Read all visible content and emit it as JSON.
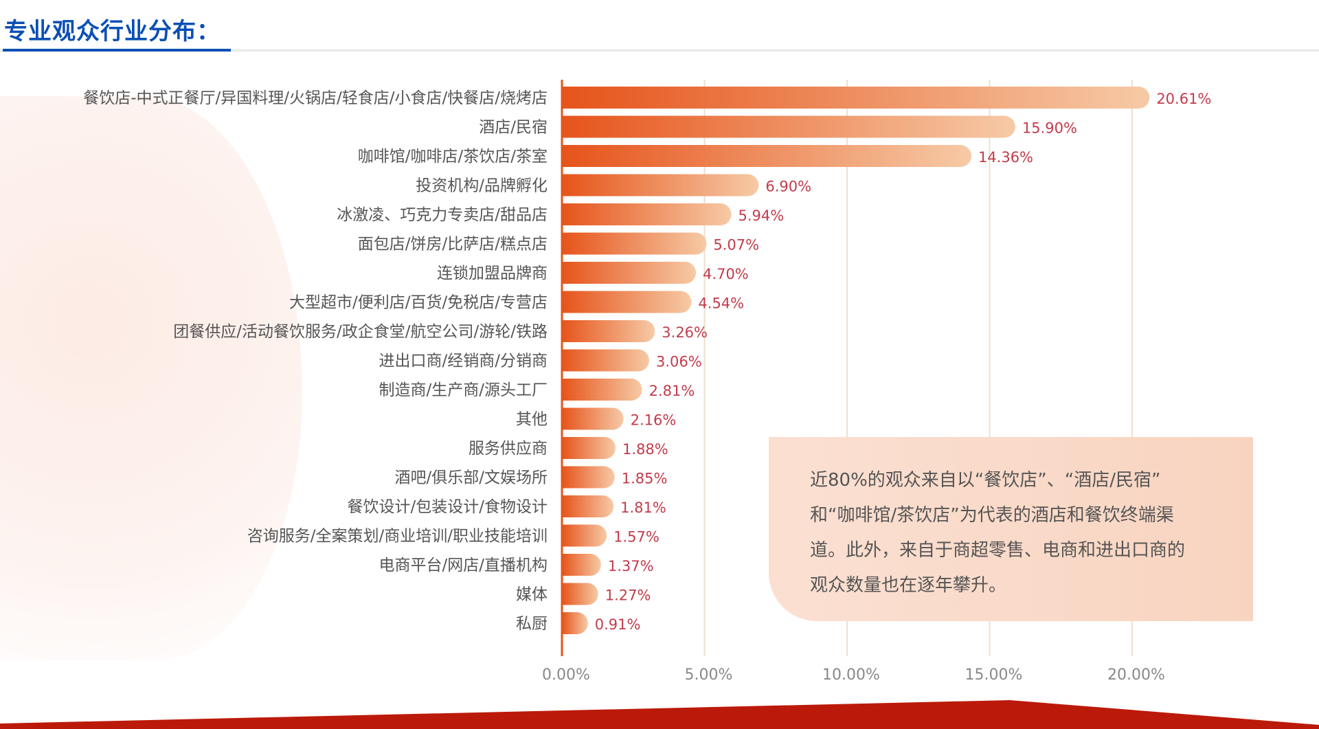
{
  "header": {
    "title": "专业观众行业分布："
  },
  "chart_data": {
    "type": "bar",
    "orientation": "horizontal",
    "title": "专业观众行业分布：",
    "categories": [
      "餐饮店-中式正餐厅/异国料理/火锅店/轻食店/小食店/快餐店/烧烤店",
      "酒店/民宿",
      "咖啡馆/咖啡店/茶饮店/茶室",
      "投资机构/品牌孵化",
      "冰激凌、巧克力专卖店/甜品店",
      "面包店/饼房/比萨店/糕点店",
      "连锁加盟品牌商",
      "大型超市/便利店/百货/免税店/专营店",
      "团餐供应/活动餐饮服务/政企食堂/航空公司/游轮/铁路",
      "进出口商/经销商/分销商",
      "制造商/生产商/源头工厂",
      "其他",
      "服务供应商",
      "酒吧/俱乐部/文娱场所",
      "餐饮设计/包装设计/食物设计",
      "咨询服务/全案策划/商业培训/职业技能培训",
      "电商平台/网店/直播机构",
      "媒体",
      "私厨"
    ],
    "values": [
      20.61,
      15.9,
      14.36,
      6.9,
      5.94,
      5.07,
      4.7,
      4.54,
      3.26,
      3.06,
      2.81,
      2.16,
      1.88,
      1.85,
      1.81,
      1.57,
      1.37,
      1.27,
      0.91
    ],
    "value_labels": [
      "20.61%",
      "15.90%",
      "14.36%",
      "6.90%",
      "5.94%",
      "5.07%",
      "4.70%",
      "4.54%",
      "3.26%",
      "3.06%",
      "2.81%",
      "2.16%",
      "1.88%",
      "1.85%",
      "1.81%",
      "1.57%",
      "1.37%",
      "1.27%",
      "0.91%"
    ],
    "xticks": [
      0,
      5,
      10,
      15,
      20
    ],
    "xtick_labels": [
      "0.00%",
      "5.00%",
      "10.00%",
      "15.00%",
      "20.00%"
    ],
    "xlim": [
      0,
      20
    ],
    "xlabel": "",
    "ylabel": "",
    "grid": true,
    "colors": {
      "bar_start": "#e6541b",
      "bar_end": "#f6caa6",
      "label": "#c23b4b",
      "grid": "#eedfcc"
    }
  },
  "note": {
    "lines": [
      "近80%的观众来自以“餐饮店”、“酒店/民宿”",
      "和“咖啡馆/茶饮店”为代表的酒店和餐饮终端渠",
      "道。此外，来自于商超零售、电商和进出口商的",
      "观众数量也在逐年攀升。"
    ]
  }
}
